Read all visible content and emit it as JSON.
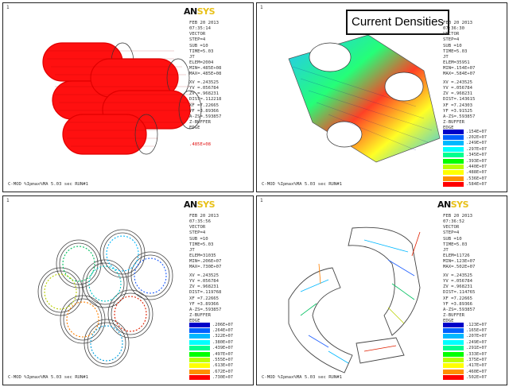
{
  "panels": [
    {
      "index": "1",
      "logo": {
        "an": "AN",
        "sys": "SYS"
      },
      "info": [
        "FEB 20 2013",
        "07:35:14",
        "VECTOR",
        "STEP=4",
        "SUB =10",
        "TIME=5.03",
        "JT",
        "ELEM=2004",
        "MIN=.485E+08",
        "MAX=.485E+08",
        "",
        "XV =.243525",
        "YV =.056784",
        "ZV =.968231",
        "DIST=.112218",
        "XF =7.22665",
        "YF =3.89366",
        "A-ZS=.593857",
        "Z-BUFFER",
        "EDGE"
      ],
      "edge_value": ".485E+08",
      "footer": "C-MOD %Ipmax%MA 5.03 sec RUN#1"
    },
    {
      "index": "1",
      "title_box": "Current Densities",
      "info": [
        "FEB 20 2013",
        "07:36:30",
        "VECTOR",
        "STEP=4",
        "SUB =10",
        "TIME=5.03",
        "JT",
        "ELEM=35951",
        "MIN=.154E+07",
        "MAX=.584E+07",
        "",
        "XV =.243525",
        "YV =.056784",
        "ZV =.968231",
        "DIST=.143615",
        "XF =7.24303",
        "YF =3.91525",
        "A-ZS=.593857",
        "Z-BUFFER",
        "EDGE"
      ],
      "legend": [
        {
          "label": ".154E+07",
          "color": "#0000c8"
        },
        {
          "label": ".202E+07",
          "color": "#0060ff"
        },
        {
          "label": ".249E+07",
          "color": "#00b8ff"
        },
        {
          "label": ".297E+07",
          "color": "#00ffff"
        },
        {
          "label": ".345E+07",
          "color": "#00ff90"
        },
        {
          "label": ".393E+07",
          "color": "#00ff00"
        },
        {
          "label": ".440E+07",
          "color": "#b8ff00"
        },
        {
          "label": ".488E+07",
          "color": "#ffff00"
        },
        {
          "label": ".536E+07",
          "color": "#ff9000"
        },
        {
          "label": ".584E+07",
          "color": "#ff0000"
        }
      ],
      "footer": "C-MOD %Ipmax%MA 5.03 sec RUN#1"
    },
    {
      "index": "1",
      "logo": {
        "an": "AN",
        "sys": "SYS"
      },
      "info": [
        "FEB 20 2013",
        "07:35:56",
        "VECTOR",
        "STEP=4",
        "SUB =10",
        "TIME=5.03",
        "JT",
        "ELEM=31035",
        "MIN=.206E+07",
        "MAX=.730E+07",
        "",
        "XV =.243525",
        "YV =.056784",
        "ZV =.968231",
        "DIST=.119768",
        "XF =7.22665",
        "YF =3.89366",
        "A-ZS=.593857",
        "Z-BUFFER",
        "EDGE"
      ],
      "legend": [
        {
          "label": ".206E+07",
          "color": "#0000c8"
        },
        {
          "label": ".264E+07",
          "color": "#0060ff"
        },
        {
          "label": ".322E+07",
          "color": "#00b8ff"
        },
        {
          "label": ".380E+07",
          "color": "#00ffff"
        },
        {
          "label": ".439E+07",
          "color": "#00ff90"
        },
        {
          "label": ".497E+07",
          "color": "#00ff00"
        },
        {
          "label": ".555E+07",
          "color": "#b8ff00"
        },
        {
          "label": ".613E+07",
          "color": "#ffff00"
        },
        {
          "label": ".672E+07",
          "color": "#ff9000"
        },
        {
          "label": ".730E+07",
          "color": "#ff0000"
        }
      ],
      "footer": "C-MOD %Ipmax%MA 5.03 sec RUN#1"
    },
    {
      "index": "1",
      "logo": {
        "an": "AN",
        "sys": "SYS"
      },
      "info": [
        "FEB 20 2013",
        "07:36:52",
        "VECTOR",
        "STEP=4",
        "SUB =10",
        "TIME=5.03",
        "JT",
        "ELEM=11726",
        "MIN=.123E+07",
        "MAX=.502E+07",
        "",
        "XV =.243525",
        "YV =.056784",
        "ZV =.968231",
        "DIST=.114765",
        "XF =7.22665",
        "YF =3.89366",
        "A-ZS=.593857",
        "Z-BUFFER",
        "EDGE"
      ],
      "legend": [
        {
          "label": ".123E+07",
          "color": "#0000c8"
        },
        {
          "label": ".165E+07",
          "color": "#0060ff"
        },
        {
          "label": ".207E+07",
          "color": "#00b8ff"
        },
        {
          "label": ".249E+07",
          "color": "#00ffff"
        },
        {
          "label": ".291E+07",
          "color": "#00ff90"
        },
        {
          "label": ".333E+07",
          "color": "#00ff00"
        },
        {
          "label": ".375E+07",
          "color": "#b8ff00"
        },
        {
          "label": ".417E+07",
          "color": "#ffff00"
        },
        {
          "label": ".460E+07",
          "color": "#ff9000"
        },
        {
          "label": ".502E+07",
          "color": "#ff0000"
        }
      ],
      "footer": "C-MOD %Ipmax%MA 5.03 sec RUN#1"
    }
  ]
}
